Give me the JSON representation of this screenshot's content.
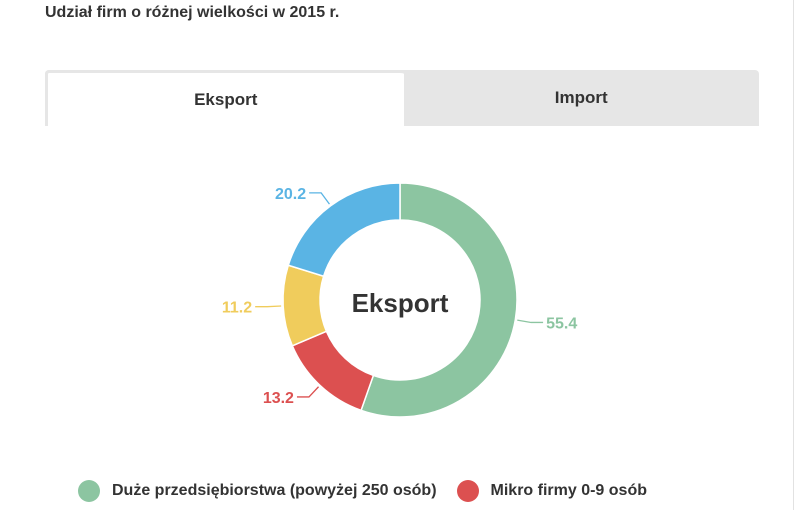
{
  "page": {
    "title": "Udział firm o różnej wielkości w 2015 r."
  },
  "tabs": [
    {
      "label": "Eksport",
      "active": true
    },
    {
      "label": "Import",
      "active": false
    }
  ],
  "colors": {
    "green": "#8cc5a1",
    "red": "#dc5050",
    "yellow": "#f0cc5c",
    "blue": "#5ab4e4"
  },
  "chart_data": {
    "type": "pie",
    "subtype": "donut",
    "center_label": "Eksport",
    "slices": [
      {
        "value": 55.4,
        "color": "#8cc5a1"
      },
      {
        "value": 13.2,
        "color": "#dc5050"
      },
      {
        "value": 11.2,
        "color": "#f0cc5c"
      },
      {
        "value": 20.2,
        "color": "#5ab4e4"
      }
    ],
    "legend": {
      "placement": "bottom",
      "entries": [
        {
          "label": "Duże przedsiębiorstwa (powyżej 250 osób)",
          "color": "#8cc5a1"
        },
        {
          "label": "Mikro firmy 0-9 osób",
          "color": "#dc5050"
        }
      ]
    }
  }
}
